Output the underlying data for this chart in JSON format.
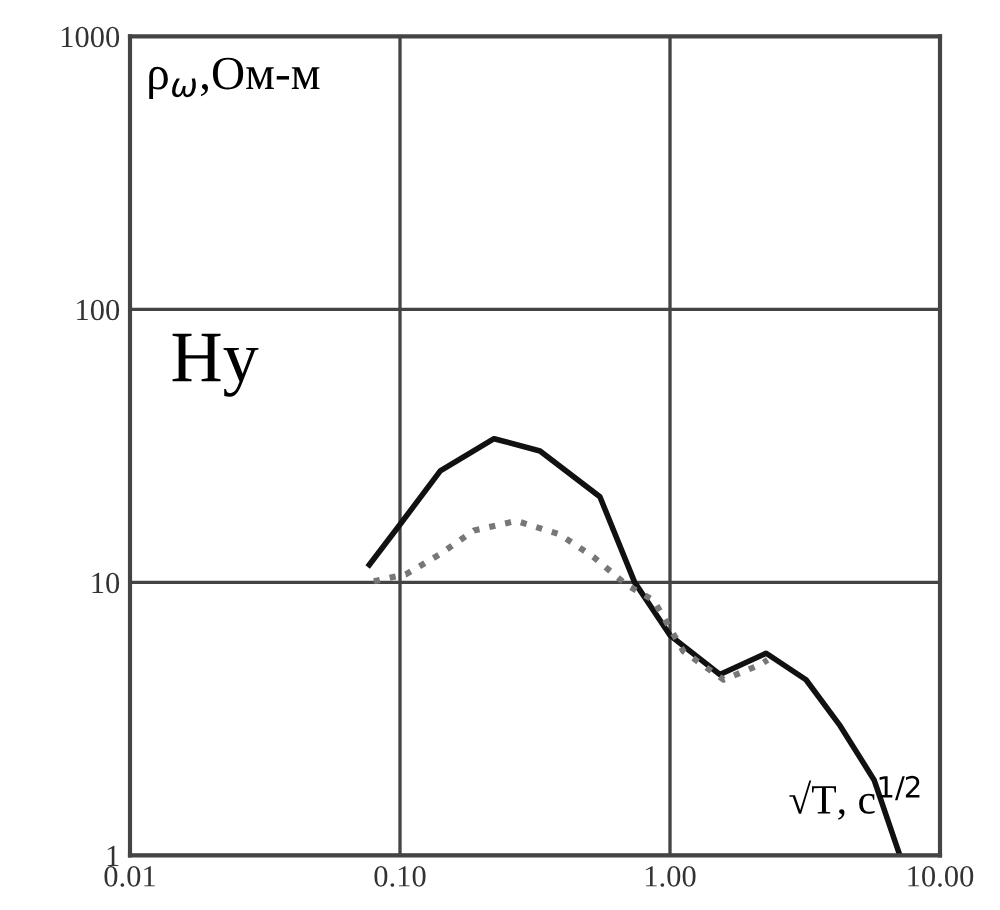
{
  "chart_data": {
    "type": "line",
    "log": "xy",
    "xlim": [
      0.01,
      10
    ],
    "ylim": [
      1,
      1000
    ],
    "xticks": [
      {
        "value": 0.01,
        "label": "0.01"
      },
      {
        "value": 0.1,
        "label": "0.10"
      },
      {
        "value": 1,
        "label": "1.00"
      },
      {
        "value": 10,
        "label": "10.00"
      }
    ],
    "yticks": [
      1,
      10,
      100,
      1000
    ],
    "grid": true,
    "ylabel": "ρ$_{ω}$,Ом-м",
    "xlabel": "√T, c$^{1/2}$",
    "annotations": [
      "Hy"
    ],
    "series": [
      {
        "color": "#111111",
        "line_style": "solid",
        "x": [
          0.077,
          0.1,
          0.141,
          0.223,
          0.33,
          0.55,
          0.74,
          1.0,
          1.53,
          2.27,
          3.19,
          4.27,
          5.7,
          7.1
        ],
        "values": [
          11.6,
          16.3,
          25.6,
          33.6,
          30.3,
          20.6,
          10,
          6.4,
          4.6,
          5.5,
          4.4,
          2.98,
          1.89,
          1.0
        ]
      },
      {
        "color": "#777777",
        "line_style": "dotted",
        "x": [
          0.08,
          0.105,
          0.141,
          0.188,
          0.27,
          0.39,
          0.52,
          0.69,
          0.87,
          1.12,
          1.58,
          2.16,
          2.3
        ],
        "values": [
          10.1,
          10.7,
          12.7,
          15.5,
          16.8,
          15,
          12.4,
          9.8,
          8.6,
          5.6,
          4.4,
          5.0,
          5.2
        ]
      }
    ]
  }
}
